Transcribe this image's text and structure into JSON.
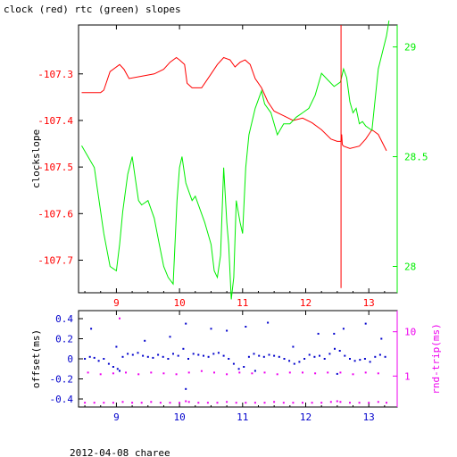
{
  "title": "clock (red) rtc (green) slopes",
  "footer": "2012-04-08 charee",
  "colors": {
    "clock": "#ff0000",
    "rtc": "#00ee00",
    "offset": "#0000cc",
    "rtt": "#ee00ee",
    "axis": "#000000"
  },
  "chart_data": [
    {
      "type": "line",
      "ylabel": "clockslope",
      "y2label": "",
      "xlim": [
        8.4,
        13.45
      ],
      "ylim": [
        -107.77,
        -107.195
      ],
      "y2lim": [
        27.88,
        29.1
      ],
      "x_ticks": [
        "9",
        "10",
        "11",
        "12",
        "13"
      ],
      "x_tick_values": [
        9,
        10,
        11,
        12,
        13
      ],
      "y_ticks": [
        "-107.3",
        "-107.4",
        "-107.5",
        "-107.6",
        "-107.7"
      ],
      "y_tick_values": [
        -107.3,
        -107.4,
        -107.5,
        -107.6,
        -107.7
      ],
      "y2_ticks": [
        "29",
        "28.5",
        "28"
      ],
      "y2_tick_values": [
        29,
        28.5,
        28
      ],
      "series": [
        {
          "name": "clock",
          "axis": "left",
          "x": [
            8.45,
            8.75,
            8.8,
            8.9,
            9.05,
            9.12,
            9.2,
            9.4,
            9.6,
            9.75,
            9.85,
            9.95,
            10.0,
            10.08,
            10.12,
            10.2,
            10.35,
            10.5,
            10.6,
            10.7,
            10.8,
            10.88,
            10.96,
            11.04,
            11.12,
            11.2,
            11.3,
            11.4,
            11.5,
            11.65,
            11.8,
            11.95,
            12.1,
            12.25,
            12.4,
            12.5,
            12.56,
            12.57,
            12.58,
            12.6,
            12.7,
            12.85,
            12.95,
            13.05,
            13.15,
            13.28
          ],
          "y": [
            -107.34,
            -107.34,
            -107.335,
            -107.295,
            -107.28,
            -107.29,
            -107.31,
            -107.305,
            -107.3,
            -107.29,
            -107.275,
            -107.265,
            -107.27,
            -107.28,
            -107.32,
            -107.33,
            -107.33,
            -107.3,
            -107.28,
            -107.265,
            -107.27,
            -107.285,
            -107.275,
            -107.27,
            -107.28,
            -107.31,
            -107.33,
            -107.36,
            -107.38,
            -107.39,
            -107.4,
            -107.395,
            -107.405,
            -107.42,
            -107.44,
            -107.445,
            -107.445,
            -107.43,
            -107.452,
            -107.455,
            -107.46,
            -107.455,
            -107.44,
            -107.42,
            -107.43,
            -107.465
          ]
        },
        {
          "name": "rtc",
          "axis": "right",
          "x": [
            8.45,
            8.55,
            8.65,
            8.7,
            8.8,
            8.9,
            9.0,
            9.05,
            9.1,
            9.18,
            9.25,
            9.3,
            9.35,
            9.4,
            9.5,
            9.6,
            9.68,
            9.75,
            9.82,
            9.9,
            9.96,
            10.0,
            10.04,
            10.1,
            10.15,
            10.2,
            10.25,
            10.3,
            10.4,
            10.5,
            10.55,
            10.6,
            10.65,
            10.7,
            10.75,
            10.78,
            10.82,
            10.86,
            10.9,
            10.96,
            11.0,
            11.05,
            11.1,
            11.2,
            11.3,
            11.35,
            11.45,
            11.55,
            11.65,
            11.75,
            11.85,
            11.95,
            12.05,
            12.15,
            12.25,
            12.35,
            12.45,
            12.55,
            12.6,
            12.65,
            12.7,
            12.75,
            12.8,
            12.85,
            12.9,
            12.95,
            13.05,
            13.15,
            13.22,
            13.28,
            13.32
          ],
          "y": [
            28.55,
            28.5,
            28.45,
            28.35,
            28.15,
            28.0,
            27.98,
            28.1,
            28.25,
            28.42,
            28.5,
            28.4,
            28.3,
            28.28,
            28.3,
            28.22,
            28.1,
            28.0,
            27.95,
            27.92,
            28.3,
            28.45,
            28.5,
            28.38,
            28.34,
            28.3,
            28.32,
            28.28,
            28.2,
            28.1,
            27.98,
            27.95,
            28.05,
            28.45,
            28.2,
            28.1,
            27.85,
            27.95,
            28.3,
            28.2,
            28.15,
            28.45,
            28.6,
            28.72,
            28.8,
            28.74,
            28.7,
            28.6,
            28.65,
            28.65,
            28.68,
            28.7,
            28.72,
            28.78,
            28.88,
            28.85,
            28.82,
            28.84,
            28.9,
            28.86,
            28.75,
            28.7,
            28.72,
            28.65,
            28.66,
            28.64,
            28.62,
            28.9,
            28.98,
            29.05,
            29.12
          ]
        }
      ],
      "vertical_lines": [
        {
          "x": 12.56,
          "from": -107.195,
          "to": -107.76,
          "series": "clock"
        }
      ]
    },
    {
      "type": "scatter",
      "ylabel": "offset(ms)",
      "y2label": "rnd-trip(ms)",
      "xlim": [
        8.4,
        13.45
      ],
      "ylim": [
        -0.48,
        0.48
      ],
      "y2_scale": "log",
      "y2lim": [
        0.2,
        30
      ],
      "x_ticks": [
        "9",
        "10",
        "11",
        "12",
        "13"
      ],
      "x_tick_values": [
        9,
        10,
        11,
        12,
        13
      ],
      "y_ticks": [
        "0.4",
        "0.2",
        "0",
        "-0.2",
        "-0.4"
      ],
      "y_tick_values": [
        0.4,
        0.2,
        0,
        -0.2,
        -0.4
      ],
      "y2_ticks": [
        "10",
        "1"
      ],
      "y2_tick_values": [
        10,
        1
      ],
      "series": [
        {
          "name": "offset",
          "axis": "left",
          "x": [
            8.5,
            8.58,
            8.65,
            8.72,
            8.8,
            8.88,
            8.95,
            9.02,
            9.1,
            9.18,
            9.26,
            9.34,
            9.42,
            9.5,
            9.58,
            9.66,
            9.74,
            9.82,
            9.9,
            9.98,
            10.06,
            10.14,
            10.22,
            10.3,
            10.38,
            10.46,
            10.54,
            10.62,
            10.7,
            10.78,
            10.86,
            10.94,
            11.02,
            11.1,
            11.18,
            11.26,
            11.34,
            11.42,
            11.5,
            11.58,
            11.66,
            11.74,
            11.82,
            11.9,
            11.98,
            12.06,
            12.14,
            12.22,
            12.3,
            12.38,
            12.46,
            12.54,
            12.62,
            12.7,
            12.78,
            12.86,
            12.94,
            13.02,
            13.1,
            13.18,
            13.26,
            8.6,
            9.05,
            9.45,
            9.85,
            10.1,
            10.5,
            10.75,
            11.05,
            11.4,
            11.8,
            12.2,
            12.45,
            12.6,
            12.95,
            13.2,
            9.0,
            10.1,
            11.2,
            12.5
          ],
          "y": [
            0.0,
            0.02,
            0.01,
            -0.02,
            0.0,
            -0.05,
            -0.08,
            -0.1,
            0.02,
            0.05,
            0.04,
            0.06,
            0.03,
            0.02,
            0.01,
            0.04,
            0.02,
            0.0,
            0.05,
            0.03,
            0.1,
            0.0,
            0.05,
            0.04,
            0.03,
            0.02,
            0.05,
            0.06,
            0.03,
            0.0,
            -0.05,
            -0.1,
            -0.08,
            0.02,
            0.05,
            0.03,
            0.02,
            0.04,
            0.03,
            0.02,
            0.0,
            -0.02,
            -0.05,
            -0.03,
            0.0,
            0.04,
            0.02,
            0.03,
            0.0,
            0.05,
            0.1,
            0.08,
            0.03,
            0.0,
            -0.02,
            -0.01,
            0.0,
            -0.03,
            0.02,
            0.04,
            0.02,
            0.3,
            -0.12,
            0.18,
            0.22,
            0.35,
            0.3,
            0.28,
            0.32,
            0.36,
            0.12,
            0.25,
            0.25,
            0.3,
            0.35,
            0.2,
            0.12,
            -0.3,
            -0.12,
            -0.15
          ]
        },
        {
          "name": "rtt",
          "axis": "right",
          "x": [
            8.5,
            8.65,
            8.8,
            8.95,
            9.1,
            9.25,
            9.4,
            9.55,
            9.7,
            9.85,
            10.0,
            10.1,
            10.15,
            10.3,
            10.45,
            10.6,
            10.75,
            10.9,
            11.05,
            11.2,
            11.35,
            11.5,
            11.65,
            11.8,
            11.95,
            12.1,
            12.25,
            12.4,
            12.5,
            12.55,
            12.7,
            12.85,
            13.0,
            13.15,
            13.28,
            8.55,
            8.75,
            8.95,
            9.15,
            9.35,
            9.55,
            9.75,
            9.95,
            10.15,
            10.35,
            10.55,
            10.75,
            10.95,
            11.15,
            11.35,
            11.55,
            11.75,
            11.95,
            12.15,
            12.35,
            12.55,
            12.75,
            12.95,
            13.15,
            9.05
          ],
          "y": [
            0.25,
            0.25,
            0.25,
            0.25,
            0.26,
            0.25,
            0.25,
            0.26,
            0.25,
            0.25,
            0.25,
            0.27,
            0.26,
            0.25,
            0.25,
            0.25,
            0.26,
            0.25,
            0.25,
            0.25,
            0.25,
            0.26,
            0.25,
            0.25,
            0.25,
            0.25,
            0.25,
            0.26,
            0.27,
            0.26,
            0.25,
            0.25,
            0.25,
            0.26,
            0.25,
            1.2,
            1.1,
            1.15,
            1.2,
            1.1,
            1.2,
            1.15,
            1.1,
            1.2,
            1.3,
            1.2,
            1.1,
            1.2,
            1.15,
            1.2,
            1.1,
            1.2,
            1.2,
            1.15,
            1.2,
            1.2,
            1.1,
            1.2,
            1.15,
            20
          ]
        }
      ]
    }
  ]
}
